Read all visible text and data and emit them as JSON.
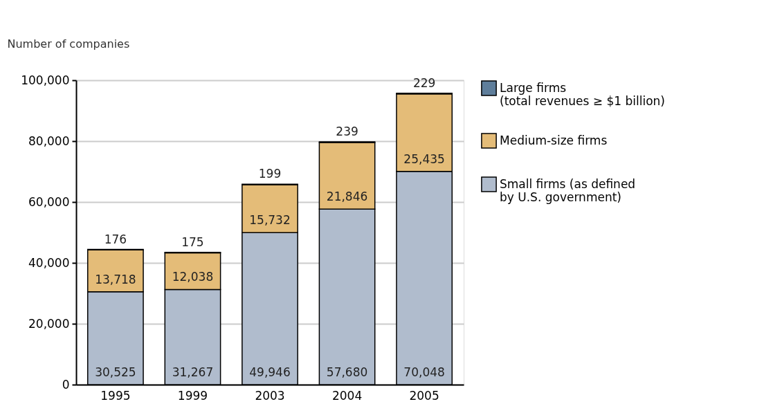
{
  "chart_data": {
    "type": "bar",
    "stacked": true,
    "ylabel": "Number of companies",
    "categories": [
      "1995",
      "1999",
      "2003",
      "2004",
      "2005"
    ],
    "series": [
      {
        "name": "Small firms (as defined\nby U.S. government)",
        "color": "#b0bccd",
        "values": [
          30525,
          31267,
          49946,
          57680,
          70048
        ],
        "value_labels": [
          "30,525",
          "31,267",
          "49,946",
          "57,680",
          "70,048"
        ]
      },
      {
        "name": "Medium-size firms",
        "color": "#e4bc78",
        "values": [
          13718,
          12038,
          15732,
          21846,
          25435
        ],
        "value_labels": [
          "13,718",
          "12,038",
          "15,732",
          "21,846",
          "25,435"
        ]
      },
      {
        "name": "Large firms\n(total revenues ≥ $1 billion)",
        "color": "#5f7e9b",
        "values": [
          176,
          175,
          199,
          239,
          229
        ],
        "value_labels": [
          "176",
          "175",
          "199",
          "239",
          "229"
        ]
      }
    ],
    "ylim": [
      0,
      100000
    ],
    "yticks": [
      0,
      {
        "value": 20000,
        "label": "20,000"
      },
      {
        "value": 40000,
        "label": "40,000"
      },
      {
        "value": 60000,
        "label": "60,000"
      },
      {
        "value": 80000,
        "label": "80,000"
      },
      {
        "value": 100000,
        "label": "100,000"
      }
    ],
    "grid": "y",
    "legend": "right"
  }
}
